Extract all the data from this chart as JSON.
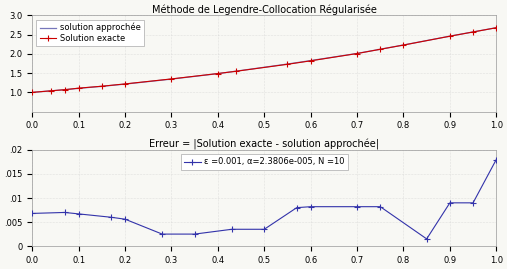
{
  "title1": "Méthode de Legendre-Collocation Régularisée",
  "title2": "Erreur = |Solution exacte - solution approchée|",
  "legend1_exact": "Solution exacte",
  "legend1_approx": "solution approchée",
  "legend2": "ε =0.001, α=2.3806e-005, N =10",
  "x_exact": [
    0.0,
    0.04,
    0.07,
    0.1,
    0.15,
    0.2,
    0.3,
    0.4,
    0.44,
    0.55,
    0.6,
    0.7,
    0.75,
    0.8,
    0.9,
    0.95,
    1.0
  ],
  "y_exact": [
    1.0,
    1.04,
    1.07,
    1.11,
    1.16,
    1.22,
    1.35,
    1.49,
    1.55,
    1.73,
    1.82,
    2.01,
    2.12,
    2.23,
    2.46,
    2.57,
    2.68
  ],
  "x_approx": [
    0.0,
    0.04,
    0.07,
    0.1,
    0.15,
    0.2,
    0.3,
    0.4,
    0.44,
    0.55,
    0.6,
    0.7,
    0.75,
    0.8,
    0.9,
    0.95,
    1.0
  ],
  "y_approx": [
    1.0,
    1.04,
    1.07,
    1.105,
    1.157,
    1.215,
    1.345,
    1.487,
    1.553,
    1.737,
    1.827,
    2.012,
    2.122,
    2.232,
    2.462,
    2.572,
    2.682
  ],
  "x_err": [
    0.0,
    0.07,
    0.1,
    0.17,
    0.2,
    0.28,
    0.35,
    0.43,
    0.5,
    0.57,
    0.6,
    0.7,
    0.75,
    0.85,
    0.9,
    0.95,
    1.0
  ],
  "y_err": [
    0.0068,
    0.007,
    0.0067,
    0.006,
    0.0056,
    0.0025,
    0.0025,
    0.0035,
    0.0035,
    0.008,
    0.0082,
    0.0082,
    0.0082,
    0.0015,
    0.009,
    0.009,
    0.018
  ],
  "color_exact": "#cc0000",
  "color_approx": "#7777bb",
  "color_err": "#3333aa",
  "ylim1": [
    0.5,
    3.0
  ],
  "yticks1": [
    1.0,
    1.5,
    2.0,
    2.5,
    3.0
  ],
  "xlim1": [
    0.0,
    1.0
  ],
  "xticks1": [
    0.0,
    0.1,
    0.2,
    0.3,
    0.4,
    0.5,
    0.6,
    0.7,
    0.8,
    0.9,
    1.0
  ],
  "ylim2": [
    0.0,
    0.02
  ],
  "yticks2": [
    0.0,
    0.005,
    0.01,
    0.015,
    0.02
  ],
  "ytick2_labels": [
    "0",
    ".005",
    ".01",
    ".015",
    ".02"
  ],
  "xlim2": [
    0.0,
    1.0
  ],
  "xticks2": [
    0.0,
    0.1,
    0.2,
    0.3,
    0.4,
    0.5,
    0.6,
    0.7,
    0.8,
    0.9,
    1.0
  ],
  "bg_color": "#f8f8f4",
  "title_fontsize": 7,
  "tick_fontsize": 6,
  "legend_fontsize": 6
}
